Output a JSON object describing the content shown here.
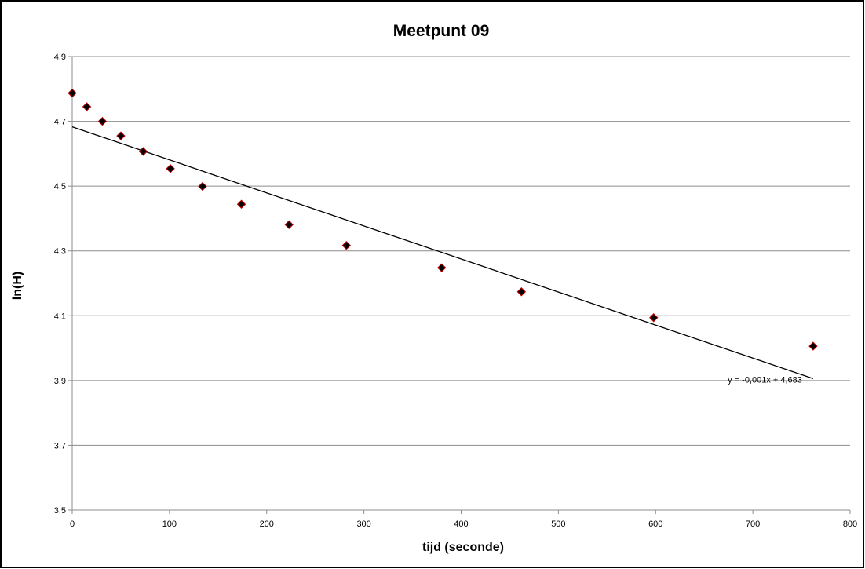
{
  "chart_data": {
    "type": "scatter",
    "title": "Meetpunt 09",
    "xlabel": "tijd (seconde)",
    "ylabel": "ln(H)",
    "xlim": [
      0,
      800
    ],
    "ylim": [
      3.5,
      4.9
    ],
    "xticks": [
      0,
      100,
      200,
      300,
      400,
      500,
      600,
      700,
      800
    ],
    "xtick_labels": [
      "0",
      "100",
      "200",
      "300",
      "400",
      "500",
      "600",
      "700",
      "800"
    ],
    "yticks": [
      3.5,
      3.7,
      3.9,
      4.1,
      4.3,
      4.5,
      4.7,
      4.9
    ],
    "ytick_labels": [
      "3,5",
      "3,7",
      "3,9",
      "4,1",
      "4,3",
      "4,5",
      "4,7",
      "4,9"
    ],
    "grid": "horizontal",
    "series": [
      {
        "marker": "diamond",
        "color": "#000000",
        "edge_color": "#c00000",
        "points": [
          {
            "x": 0,
            "y": 4.787
          },
          {
            "x": 15,
            "y": 4.745
          },
          {
            "x": 31,
            "y": 4.7
          },
          {
            "x": 50,
            "y": 4.655
          },
          {
            "x": 73,
            "y": 4.607
          },
          {
            "x": 101,
            "y": 4.554
          },
          {
            "x": 134,
            "y": 4.499
          },
          {
            "x": 174,
            "y": 4.444
          },
          {
            "x": 223,
            "y": 4.381
          },
          {
            "x": 282,
            "y": 4.317
          },
          {
            "x": 380,
            "y": 4.248
          },
          {
            "x": 462,
            "y": 4.174
          },
          {
            "x": 598,
            "y": 4.094
          },
          {
            "x": 762,
            "y": 4.006
          }
        ]
      }
    ],
    "trendline": {
      "type": "linear",
      "color": "#000000",
      "x_start": 0,
      "y_start": 4.683,
      "x_end": 762,
      "y_end": 3.906,
      "equation": "y = -0,001x + 4,683"
    }
  }
}
